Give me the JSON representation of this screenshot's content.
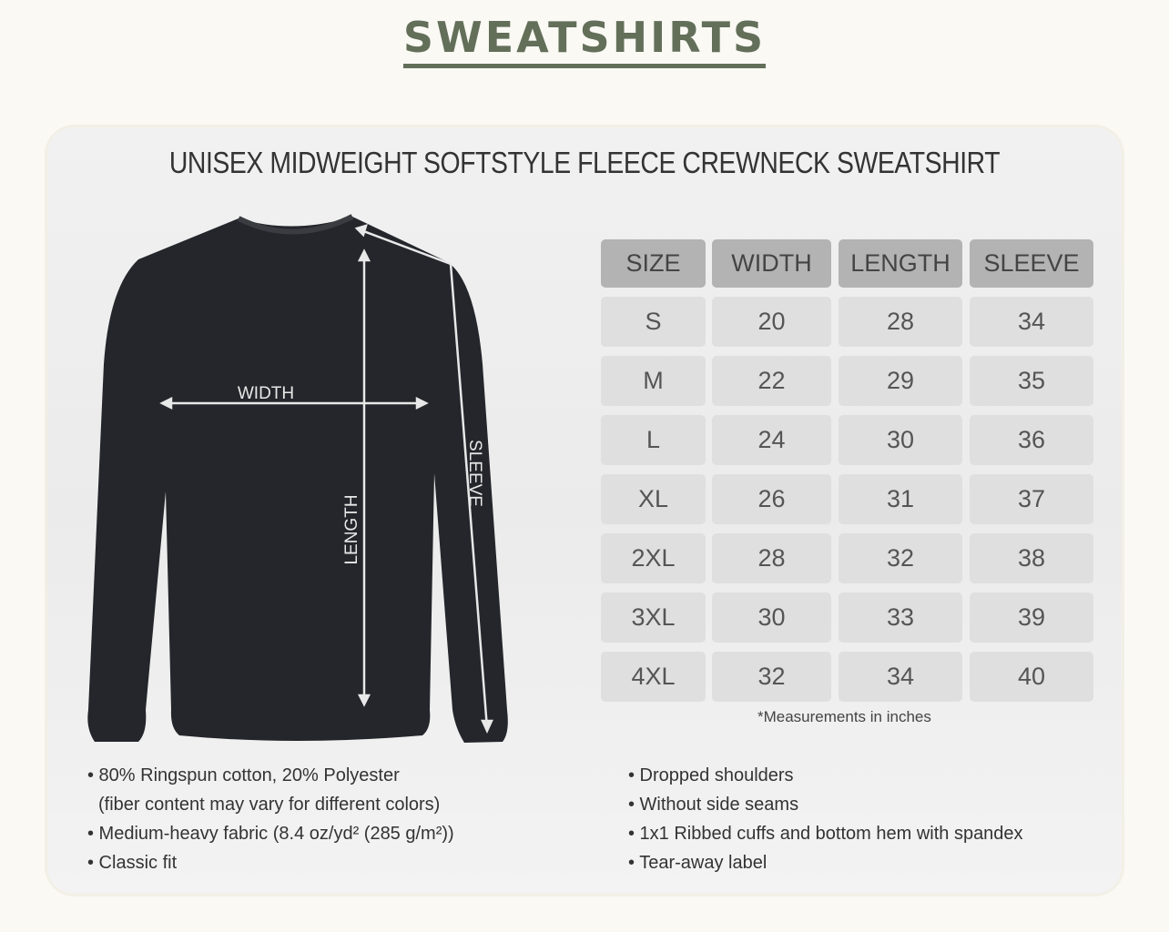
{
  "page_title": "SWEATSHIRTS",
  "chart": {
    "title": "UNISEX MIDWEIGHT SOFTSTYLE FLEECE CREWNECK SWEATSHIRT",
    "diagram_labels": {
      "width": "WIDTH",
      "length": "LENGTH",
      "sleeve": "SLEEVE"
    },
    "table": {
      "headers": [
        "SIZE",
        "WIDTH",
        "LENGTH",
        "SLEEVE"
      ],
      "rows": [
        [
          "S",
          "20",
          "28",
          "34"
        ],
        [
          "M",
          "22",
          "29",
          "35"
        ],
        [
          "L",
          "24",
          "30",
          "36"
        ],
        [
          "XL",
          "26",
          "31",
          "37"
        ],
        [
          "2XL",
          "28",
          "32",
          "38"
        ],
        [
          "3XL",
          "30",
          "33",
          "39"
        ],
        [
          "4XL",
          "32",
          "34",
          "40"
        ]
      ]
    },
    "note": "*Measurements in inches",
    "features_left": [
      "• 80% Ringspun cotton, 20% Polyester",
      "  (fiber content may vary for different colors)",
      "• Medium-heavy fabric (8.4 oz/yd² (285 g/m²))",
      "• Classic fit"
    ],
    "features_right": [
      "• Dropped shoulders",
      "• Without side seams",
      "• 1x1 Ribbed cuffs and bottom hem with spandex",
      "• Tear-away label"
    ]
  },
  "colors": {
    "title": "#636f59",
    "shirt": "#24262b",
    "header_cell": "#b3b3b3",
    "cell": "#dfdfdf"
  }
}
